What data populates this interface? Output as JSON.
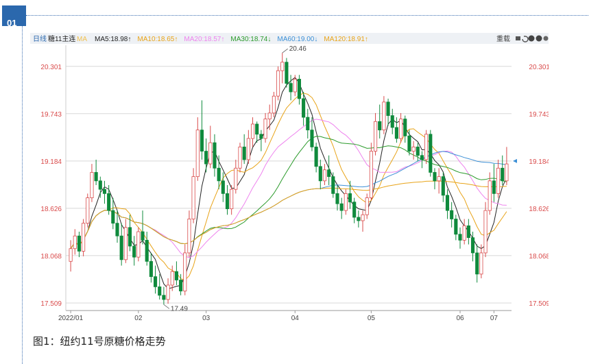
{
  "section_badge": "01",
  "caption": "图1：纽约11号原糖价格走势",
  "toolbar": {
    "period": "日线",
    "contract": "糖11主连",
    "ma_label": "MA",
    "indicators": [
      {
        "text": "MA5:18.98",
        "arrow": "up",
        "color": "#222222"
      },
      {
        "text": "MA10:18.65",
        "arrow": "up",
        "color": "#e8a317"
      },
      {
        "text": "MA20:18.57",
        "arrow": "up",
        "color": "#ee82ee"
      },
      {
        "text": "MA30:18.74",
        "arrow": "down",
        "color": "#2a9a2a"
      },
      {
        "text": "MA60:19.00",
        "arrow": "down",
        "color": "#3b8fd6"
      },
      {
        "text": "MA120:18.91",
        "arrow": "up",
        "color": "#e8a317"
      }
    ],
    "reset_label": "重载",
    "icons": [
      "lock-icon",
      "undo-icon",
      "zoom-in-icon",
      "zoom-out-icon",
      "settings-icon"
    ]
  },
  "chart_data": {
    "type": "candlestick",
    "y_ticks": [
      17.509,
      18.068,
      18.626,
      19.184,
      19.743,
      20.301
    ],
    "ylim": [
      17.42,
      20.55
    ],
    "x_ticks": [
      "2022/01",
      "02",
      "03",
      "04",
      "05",
      "06",
      "07"
    ],
    "annotations": [
      {
        "text": "20.46",
        "value": 20.46,
        "type": "high"
      },
      {
        "text": "17.49",
        "value": 17.49,
        "type": "low"
      }
    ],
    "last_price": 19.184,
    "candles": [
      [
        18.0,
        18.25,
        17.88,
        18.15
      ],
      [
        18.15,
        18.38,
        18.08,
        18.3
      ],
      [
        18.3,
        18.35,
        18.05,
        18.12
      ],
      [
        18.12,
        18.5,
        18.06,
        18.45
      ],
      [
        18.45,
        18.8,
        18.4,
        18.75
      ],
      [
        18.75,
        19.15,
        18.7,
        19.05
      ],
      [
        19.05,
        19.2,
        18.9,
        18.95
      ],
      [
        18.95,
        19.0,
        18.75,
        18.85
      ],
      [
        18.85,
        18.95,
        18.68,
        18.8
      ],
      [
        18.8,
        18.9,
        18.55,
        18.6
      ],
      [
        18.6,
        18.75,
        18.38,
        18.45
      ],
      [
        18.45,
        18.6,
        18.22,
        18.3
      ],
      [
        18.3,
        18.45,
        17.95,
        18.02
      ],
      [
        18.02,
        18.5,
        17.98,
        18.4
      ],
      [
        18.4,
        18.55,
        18.12,
        18.18
      ],
      [
        18.18,
        18.3,
        17.95,
        18.05
      ],
      [
        18.05,
        18.4,
        18.0,
        18.35
      ],
      [
        18.35,
        18.6,
        18.2,
        18.25
      ],
      [
        18.25,
        18.35,
        17.95,
        18.0
      ],
      [
        18.0,
        18.1,
        17.75,
        17.82
      ],
      [
        17.82,
        17.95,
        17.62,
        17.7
      ],
      [
        17.7,
        17.85,
        17.55,
        17.6
      ],
      [
        17.6,
        17.7,
        17.49,
        17.55
      ],
      [
        17.55,
        17.8,
        17.5,
        17.72
      ],
      [
        17.72,
        17.95,
        17.65,
        17.88
      ],
      [
        17.88,
        18.0,
        17.72,
        17.78
      ],
      [
        17.78,
        17.85,
        17.6,
        17.65
      ],
      [
        17.65,
        18.2,
        17.6,
        18.1
      ],
      [
        18.1,
        18.6,
        18.05,
        18.5
      ],
      [
        18.5,
        19.1,
        18.45,
        19.0
      ],
      [
        19.0,
        19.7,
        18.95,
        19.55
      ],
      [
        19.55,
        19.9,
        19.2,
        19.3
      ],
      [
        19.3,
        19.45,
        19.05,
        19.15
      ],
      [
        19.15,
        19.6,
        19.1,
        19.4
      ],
      [
        19.4,
        19.5,
        19.0,
        19.1
      ],
      [
        19.1,
        19.25,
        18.85,
        18.95
      ],
      [
        18.95,
        19.05,
        18.7,
        18.8
      ],
      [
        18.8,
        18.9,
        18.55,
        18.62
      ],
      [
        18.62,
        18.9,
        18.55,
        18.85
      ],
      [
        18.85,
        19.2,
        18.8,
        19.1
      ],
      [
        19.1,
        19.4,
        19.05,
        19.35
      ],
      [
        19.35,
        19.5,
        19.15,
        19.2
      ],
      [
        19.2,
        19.55,
        19.15,
        19.45
      ],
      [
        19.45,
        19.7,
        19.35,
        19.62
      ],
      [
        19.62,
        19.65,
        19.4,
        19.5
      ],
      [
        19.5,
        19.55,
        19.3,
        19.45
      ],
      [
        19.45,
        19.75,
        19.4,
        19.68
      ],
      [
        19.68,
        19.85,
        19.55,
        19.75
      ],
      [
        19.75,
        20.0,
        19.7,
        19.95
      ],
      [
        19.95,
        20.3,
        19.9,
        20.25
      ],
      [
        20.25,
        20.46,
        20.1,
        20.35
      ],
      [
        20.35,
        20.4,
        20.05,
        20.1
      ],
      [
        20.1,
        20.2,
        19.9,
        20.0
      ],
      [
        20.0,
        20.2,
        19.95,
        20.15
      ],
      [
        20.15,
        20.2,
        19.85,
        19.92
      ],
      [
        19.92,
        20.0,
        19.6,
        19.7
      ],
      [
        19.7,
        19.8,
        19.45,
        19.55
      ],
      [
        19.55,
        19.7,
        19.3,
        19.35
      ],
      [
        19.35,
        19.4,
        19.05,
        19.12
      ],
      [
        19.12,
        19.2,
        18.85,
        18.95
      ],
      [
        18.95,
        19.15,
        18.9,
        19.08
      ],
      [
        19.08,
        19.25,
        18.9,
        19.0
      ],
      [
        19.0,
        19.05,
        18.75,
        18.8
      ],
      [
        18.8,
        18.9,
        18.6,
        18.68
      ],
      [
        18.68,
        18.75,
        18.5,
        18.6
      ],
      [
        18.6,
        18.85,
        18.55,
        18.8
      ],
      [
        18.8,
        18.95,
        18.62,
        18.7
      ],
      [
        18.7,
        18.75,
        18.45,
        18.52
      ],
      [
        18.52,
        18.6,
        18.4,
        18.48
      ],
      [
        18.48,
        18.6,
        18.35,
        18.55
      ],
      [
        18.55,
        18.8,
        18.5,
        18.75
      ],
      [
        18.75,
        19.4,
        18.72,
        19.3
      ],
      [
        19.3,
        19.75,
        19.25,
        19.65
      ],
      [
        19.65,
        19.85,
        19.45,
        19.55
      ],
      [
        19.55,
        19.95,
        19.5,
        19.88
      ],
      [
        19.88,
        19.92,
        19.6,
        19.72
      ],
      [
        19.72,
        19.8,
        19.5,
        19.58
      ],
      [
        19.58,
        19.7,
        19.4,
        19.45
      ],
      [
        19.45,
        19.75,
        19.4,
        19.68
      ],
      [
        19.68,
        19.72,
        19.4,
        19.48
      ],
      [
        19.48,
        19.55,
        19.25,
        19.3
      ],
      [
        19.3,
        19.42,
        19.2,
        19.35
      ],
      [
        19.35,
        19.4,
        19.18,
        19.25
      ],
      [
        19.25,
        19.3,
        19.1,
        19.2
      ],
      [
        19.2,
        19.55,
        19.15,
        19.5
      ],
      [
        19.5,
        19.55,
        19.0,
        19.05
      ],
      [
        19.05,
        19.1,
        18.85,
        18.95
      ],
      [
        18.95,
        19.1,
        18.8,
        19.0
      ],
      [
        19.0,
        19.05,
        18.7,
        18.78
      ],
      [
        18.78,
        18.85,
        18.5,
        18.6
      ],
      [
        18.6,
        18.7,
        18.4,
        18.5
      ],
      [
        18.5,
        18.55,
        18.25,
        18.32
      ],
      [
        18.32,
        18.4,
        18.15,
        18.25
      ],
      [
        18.25,
        18.5,
        18.2,
        18.42
      ],
      [
        18.42,
        18.5,
        18.2,
        18.28
      ],
      [
        18.28,
        18.35,
        18.0,
        18.1
      ],
      [
        18.1,
        18.2,
        17.75,
        17.85
      ],
      [
        17.85,
        18.2,
        17.8,
        18.1
      ],
      [
        18.1,
        18.7,
        18.05,
        18.6
      ],
      [
        18.6,
        19.05,
        18.55,
        18.95
      ],
      [
        18.95,
        19.15,
        18.7,
        18.8
      ],
      [
        18.8,
        19.2,
        18.75,
        19.1
      ],
      [
        19.1,
        19.25,
        18.9,
        18.95
      ],
      [
        18.95,
        19.35,
        18.9,
        19.15
      ]
    ],
    "ma_series": [
      {
        "name": "MA5",
        "color": "#222222"
      },
      {
        "name": "MA10",
        "color": "#e8a317"
      },
      {
        "name": "MA20",
        "color": "#ee82ee"
      },
      {
        "name": "MA30",
        "color": "#2a9a2a"
      },
      {
        "name": "MA60",
        "color": "#3b8fd6"
      },
      {
        "name": "MA120",
        "color": "#e8a317"
      }
    ],
    "up_color": "#d94a4a",
    "down_color": "#0f8a3c"
  }
}
